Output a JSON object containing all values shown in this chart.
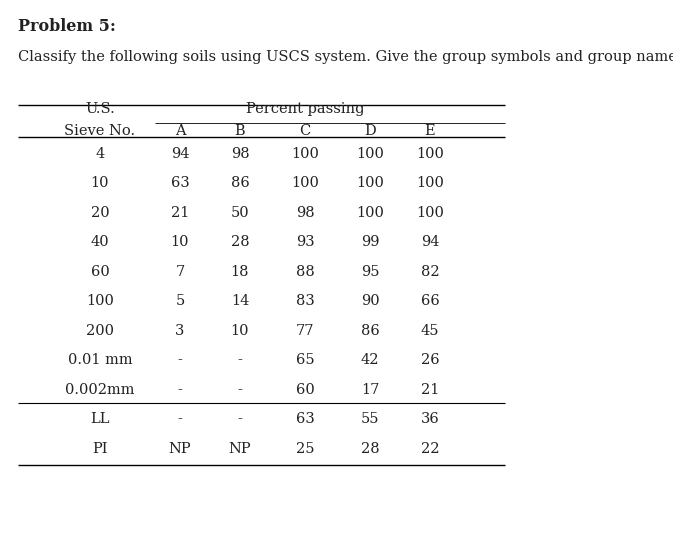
{
  "title": "Problem 5:",
  "subtitle": "Classify the following soils using USCS system. Give the group symbols and group name.",
  "header_row1_col0a": "U.S.",
  "header_row1_col0b": "Sieve No.",
  "header_row1_merged": "Percent passing",
  "columns": [
    "A",
    "B",
    "C",
    "D",
    "E"
  ],
  "rows": [
    [
      "4",
      "94",
      "98",
      "100",
      "100",
      "100"
    ],
    [
      "10",
      "63",
      "86",
      "100",
      "100",
      "100"
    ],
    [
      "20",
      "21",
      "50",
      "98",
      "100",
      "100"
    ],
    [
      "40",
      "10",
      "28",
      "93",
      "99",
      "94"
    ],
    [
      "60",
      "7",
      "18",
      "88",
      "95",
      "82"
    ],
    [
      "100",
      "5",
      "14",
      "83",
      "90",
      "66"
    ],
    [
      "200",
      "3",
      "10",
      "77",
      "86",
      "45"
    ],
    [
      "0.01 mm",
      "-",
      "-",
      "65",
      "42",
      "26"
    ],
    [
      "0.002mm",
      "-",
      "-",
      "60",
      "17",
      "21"
    ],
    [
      "LL",
      "-",
      "-",
      "63",
      "55",
      "36"
    ],
    [
      "PI",
      "NP",
      "NP",
      "25",
      "28",
      "22"
    ]
  ],
  "background_color": "#ffffff",
  "text_color": "#222222",
  "title_fontsize": 11.5,
  "subtitle_fontsize": 10.5,
  "table_fontsize": 10.5,
  "header_fontsize": 10.5,
  "figure_width": 6.73,
  "figure_height": 5.39,
  "dpi": 100
}
